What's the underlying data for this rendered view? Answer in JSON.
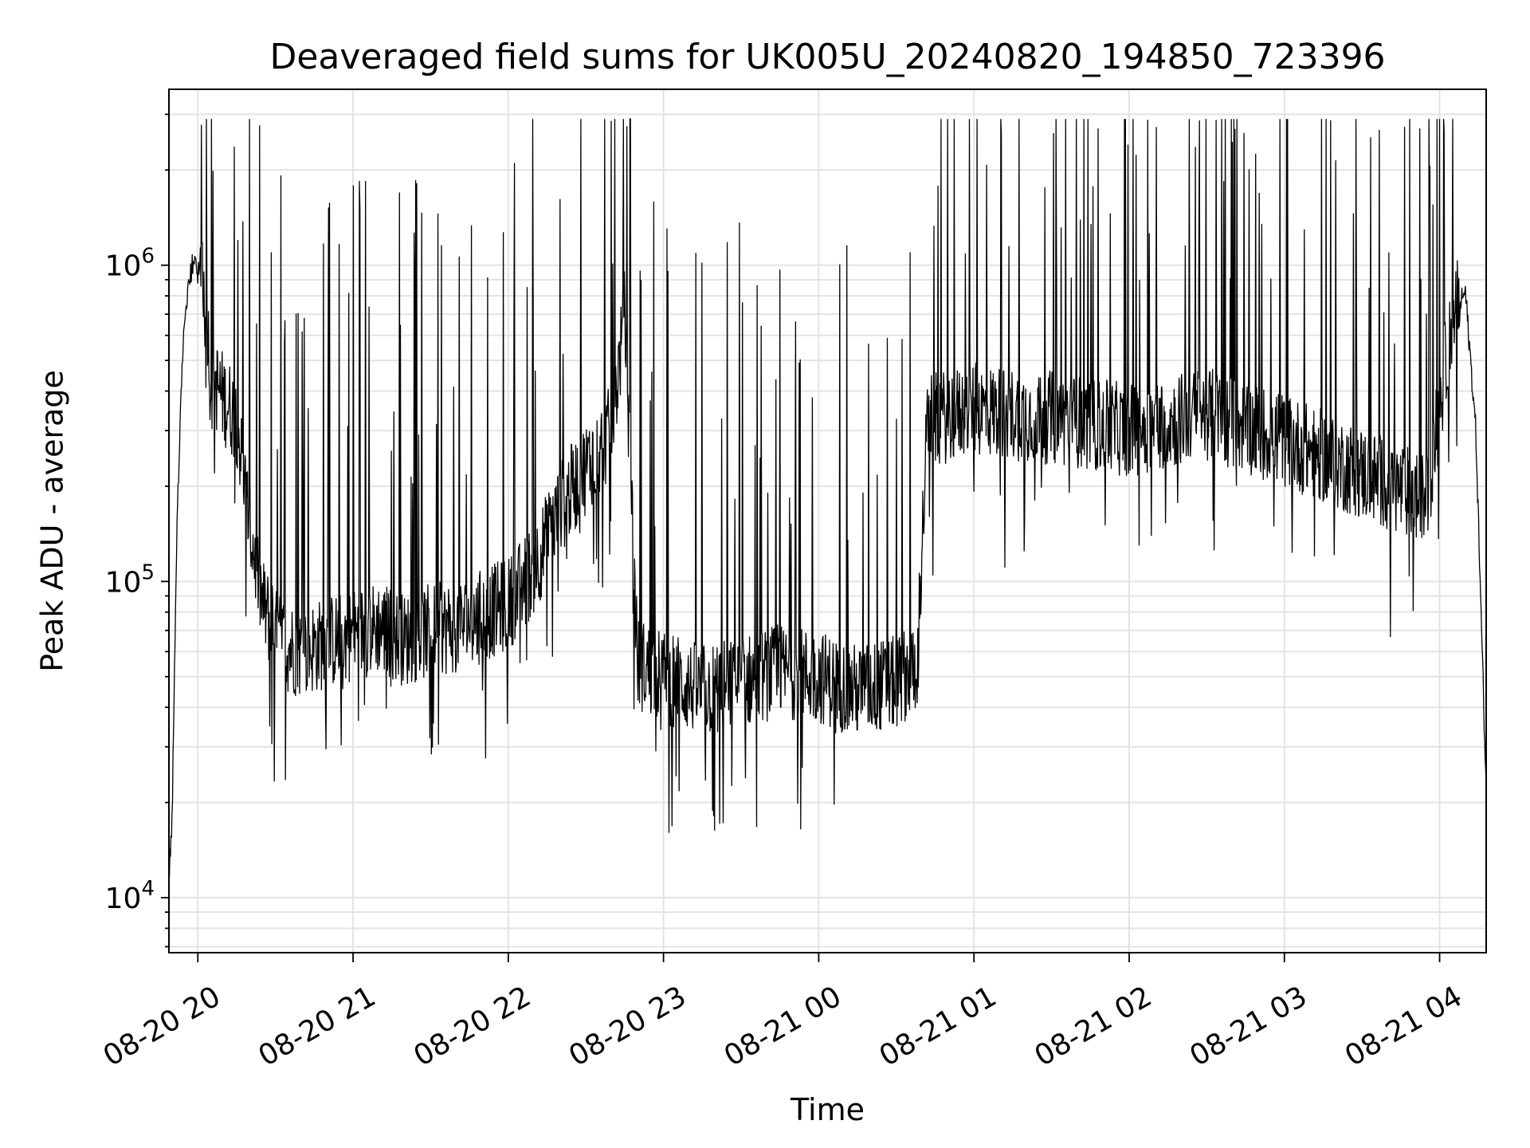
{
  "chart_data": {
    "type": "line",
    "title": "Deaveraged field sums for UK005U_20240820_194850_723396",
    "xlabel": "Time",
    "ylabel": "Peak ADU - average",
    "yscale": "log",
    "ylim": [
      6700,
      3600000
    ],
    "xlim": [
      "2024-08-20 19:48:50",
      "2024-08-21 04:18:00"
    ],
    "grid": true,
    "line_color": "#000000",
    "x_ticks": [
      "08-20 20",
      "08-20 21",
      "08-20 22",
      "08-20 23",
      "08-21 00",
      "08-21 01",
      "08-21 02",
      "08-21 03",
      "08-21 04"
    ],
    "x_tick_times": [
      "2024-08-20 20:00",
      "2024-08-20 21:00",
      "2024-08-20 22:00",
      "2024-08-20 23:00",
      "2024-08-21 00:00",
      "2024-08-21 01:00",
      "2024-08-21 02:00",
      "2024-08-21 03:00",
      "2024-08-21 04:00"
    ],
    "y_ticks": [
      {
        "value": 10000,
        "base": "10",
        "exp": "4"
      },
      {
        "value": 100000,
        "base": "10",
        "exp": "5"
      },
      {
        "value": 1000000,
        "base": "10",
        "exp": "6"
      }
    ],
    "series": [
      {
        "x": [
          "2024-08-20 19:48:50",
          "2024-08-20 19:50",
          "2024-08-20 19:52",
          "2024-08-20 19:54",
          "2024-08-20 19:56",
          "2024-08-20 19:58",
          "2024-08-20 20:00",
          "2024-08-20 20:03",
          "2024-08-20 20:05",
          "2024-08-20 20:07",
          "2024-08-20 20:10",
          "2024-08-20 20:15",
          "2024-08-20 20:20",
          "2024-08-20 20:25",
          "2024-08-20 20:30",
          "2024-08-20 20:35",
          "2024-08-20 20:40",
          "2024-08-20 20:45",
          "2024-08-20 20:50",
          "2024-08-20 21:00",
          "2024-08-20 21:10",
          "2024-08-20 21:20",
          "2024-08-20 21:30",
          "2024-08-20 21:40",
          "2024-08-20 21:50",
          "2024-08-20 22:00",
          "2024-08-20 22:10",
          "2024-08-20 22:20",
          "2024-08-20 22:30",
          "2024-08-20 22:40",
          "2024-08-20 22:45",
          "2024-08-20 22:50",
          "2024-08-20 23:00",
          "2024-08-20 23:15",
          "2024-08-20 23:30",
          "2024-08-20 23:45",
          "2024-08-21 00:00",
          "2024-08-21 00:15",
          "2024-08-21 00:30",
          "2024-08-21 00:38",
          "2024-08-21 00:42",
          "2024-08-21 01:00",
          "2024-08-21 01:30",
          "2024-08-21 02:00",
          "2024-08-21 02:30",
          "2024-08-21 03:00",
          "2024-08-21 03:30",
          "2024-08-21 03:55",
          "2024-08-21 04:05",
          "2024-08-21 04:10",
          "2024-08-21 04:14",
          "2024-08-21 04:18"
        ],
        "y": [
          12000,
          17000,
          150000,
          500000,
          850000,
          1000000,
          950000,
          900000,
          400000,
          420000,
          380000,
          330000,
          150000,
          85000,
          68000,
          62000,
          60000,
          62000,
          64000,
          68000,
          72000,
          65000,
          70000,
          72000,
          78000,
          85000,
          110000,
          170000,
          230000,
          300000,
          700000,
          55000,
          50000,
          45000,
          48000,
          52000,
          50000,
          45000,
          48000,
          55000,
          320000,
          350000,
          330000,
          300000,
          340000,
          280000,
          220000,
          180000,
          700000,
          820000,
          300000,
          22000
        ]
      }
    ]
  }
}
